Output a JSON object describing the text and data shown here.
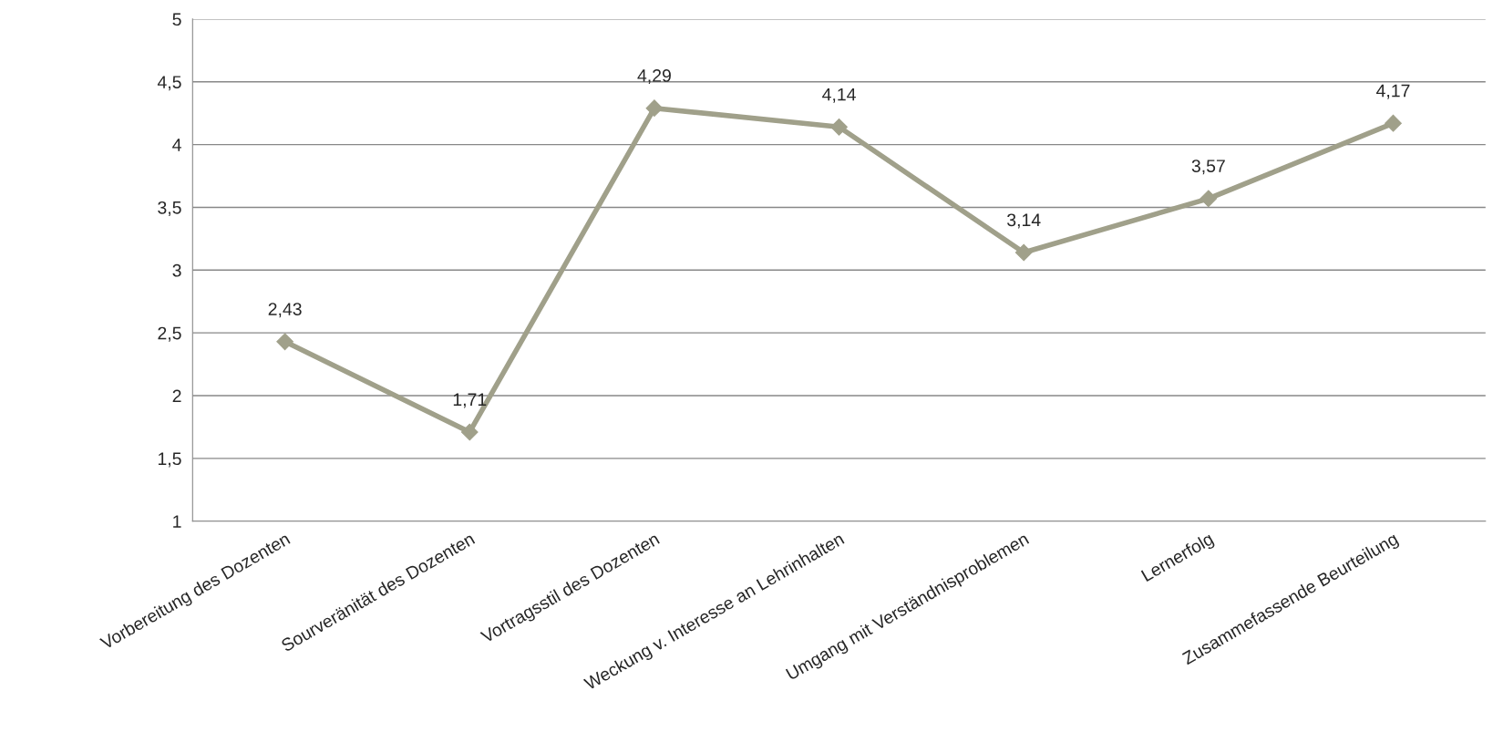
{
  "chart_data": {
    "type": "line",
    "categories": [
      "Vorbereitung des Dozenten",
      "Sourveränität des Dozenten",
      "Vortragsstil des Dozenten",
      "Weckung v. Interesse an Lehrinhalten",
      "Umgang mit Verständnisproblemen",
      "Lernerfolg",
      "Zusammefassende Beurteilung"
    ],
    "series": [
      {
        "color": "#a0a08a",
        "values": [
          2.43,
          1.71,
          4.29,
          4.14,
          3.14,
          3.57,
          4.17
        ],
        "value_labels": [
          "2,43",
          "1,71",
          "4,29",
          "4,14",
          "3,14",
          "3,57",
          "4,17"
        ]
      }
    ],
    "ylim": [
      1,
      5
    ],
    "yticks": [
      1,
      {
        "value": 1.5,
        "label": "1,5"
      },
      2,
      {
        "value": 2.5,
        "label": "2,5"
      },
      3,
      {
        "value": 3.5,
        "label": "3,5"
      },
      4,
      {
        "value": 4.5,
        "label": "4,5"
      },
      5
    ],
    "grid": "y",
    "marker": "diamond",
    "line_style": "solid",
    "legend": false
  }
}
